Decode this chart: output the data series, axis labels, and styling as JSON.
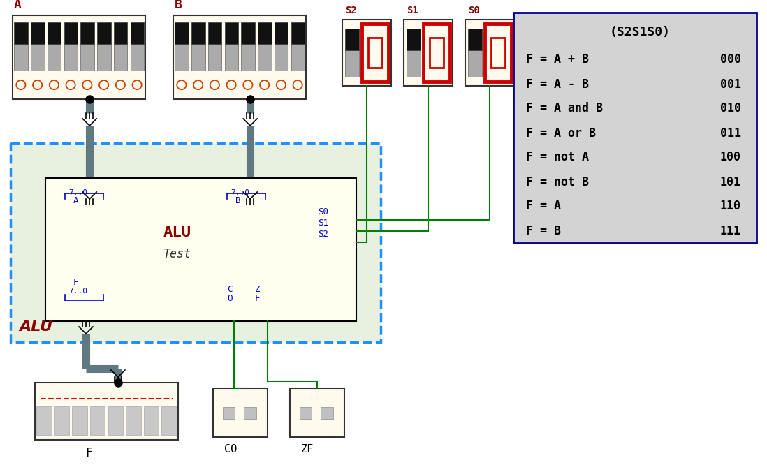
{
  "bg_color": "#ffffff",
  "table_bg": "#d3d3d3",
  "table_border": "#00008b",
  "table_header": "(S2S1S0)",
  "table_rows": [
    [
      "F = A + B",
      "000"
    ],
    [
      "F = A - B",
      "001"
    ],
    [
      "F = A and B",
      "010"
    ],
    [
      "F = A or B",
      "011"
    ],
    [
      "F = not A",
      "100"
    ],
    [
      "F = not B",
      "101"
    ],
    [
      "F = A",
      "110"
    ],
    [
      "F = B",
      "111"
    ]
  ],
  "alu_inner_color": "#fffff0",
  "alu_inner_border": "#000000",
  "outer_dashed_color": "#1e90ff",
  "outer_fill": "#e8f0e0",
  "comp_bg": "#fffaee",
  "comp_border": "#333333",
  "bus_color": "#607880",
  "wire_color": "#008000",
  "black": "#000000",
  "dark_red": "#8b0000",
  "blue": "#0000cc",
  "seg_red": "#cc0000",
  "toggle_black": "#111111",
  "toggle_gray": "#aaaaaa",
  "led_color": "#cc4400",
  "seg_gray": "#c0c0c0"
}
